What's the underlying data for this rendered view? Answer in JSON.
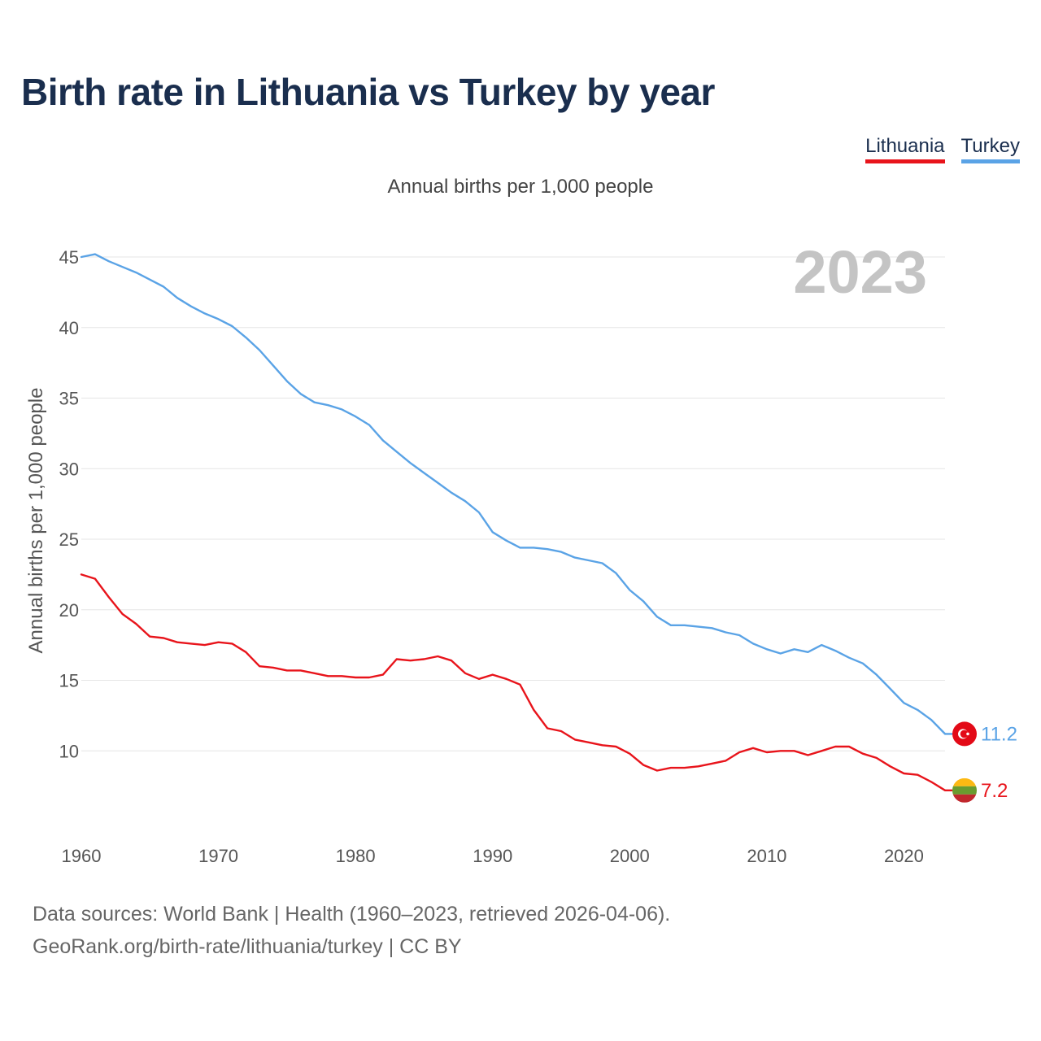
{
  "title": "Birth rate in Lithuania vs Turkey by year",
  "subtitle": "Annual births per 1,000 people",
  "legend": [
    {
      "label": "Lithuania",
      "color": "#e8141b"
    },
    {
      "label": "Turkey",
      "color": "#5aa3e6"
    }
  ],
  "year_watermark": "2023",
  "footer": {
    "line1": "Data sources: World Bank | Health (1960–2023, retrieved 2026-04-06).",
    "line2": "GeoRank.org/birth-rate/lithuania/turkey | CC BY"
  },
  "colors": {
    "lithuania": "#e8141b",
    "turkey": "#5aa3e6",
    "title": "#1a2e4e"
  },
  "chart_data": {
    "type": "line",
    "title": "Birth rate in Lithuania vs Turkey by year",
    "ylabel": "Annual births per 1,000 people",
    "xlabel": "",
    "xlim": [
      1960,
      2023
    ],
    "ylim": [
      5,
      46.5
    ],
    "x_ticks": [
      1960,
      1970,
      1980,
      1990,
      2000,
      2010,
      2020
    ],
    "y_ticks": [
      10,
      15,
      20,
      25,
      30,
      35,
      40,
      45
    ],
    "grid": true,
    "legend_position": "top-right",
    "x": [
      1960,
      1961,
      1962,
      1963,
      1964,
      1965,
      1966,
      1967,
      1968,
      1969,
      1970,
      1971,
      1972,
      1973,
      1974,
      1975,
      1976,
      1977,
      1978,
      1979,
      1980,
      1981,
      1982,
      1983,
      1984,
      1985,
      1986,
      1987,
      1988,
      1989,
      1990,
      1991,
      1992,
      1993,
      1994,
      1995,
      1996,
      1997,
      1998,
      1999,
      2000,
      2001,
      2002,
      2003,
      2004,
      2005,
      2006,
      2007,
      2008,
      2009,
      2010,
      2011,
      2012,
      2013,
      2014,
      2015,
      2016,
      2017,
      2018,
      2019,
      2020,
      2021,
      2022,
      2023
    ],
    "series": [
      {
        "name": "Turkey",
        "color": "#5aa3e6",
        "end_label": "11.2",
        "values": [
          45.0,
          45.2,
          44.7,
          44.3,
          43.9,
          43.4,
          42.9,
          42.1,
          41.5,
          41.0,
          40.6,
          40.1,
          39.3,
          38.4,
          37.3,
          36.2,
          35.3,
          34.7,
          34.5,
          34.2,
          33.7,
          33.1,
          32.0,
          31.2,
          30.4,
          29.7,
          29.0,
          28.3,
          27.7,
          26.9,
          25.5,
          24.9,
          24.4,
          24.4,
          24.3,
          24.1,
          23.7,
          23.5,
          23.3,
          22.6,
          21.4,
          20.6,
          19.5,
          18.9,
          18.9,
          18.8,
          18.7,
          18.4,
          18.2,
          17.6,
          17.2,
          16.9,
          17.2,
          17.0,
          17.5,
          17.1,
          16.6,
          16.2,
          15.4,
          14.4,
          13.4,
          12.9,
          12.2,
          11.2
        ]
      },
      {
        "name": "Lithuania",
        "color": "#e8141b",
        "end_label": "7.2",
        "values": [
          22.5,
          22.2,
          20.9,
          19.7,
          19.0,
          18.1,
          18.0,
          17.7,
          17.6,
          17.5,
          17.7,
          17.6,
          17.0,
          16.0,
          15.9,
          15.7,
          15.7,
          15.5,
          15.3,
          15.3,
          15.2,
          15.2,
          15.4,
          16.5,
          16.4,
          16.5,
          16.7,
          16.4,
          15.5,
          15.1,
          15.4,
          15.1,
          14.7,
          12.9,
          11.6,
          11.4,
          10.8,
          10.6,
          10.4,
          10.3,
          9.8,
          9.0,
          8.6,
          8.8,
          8.8,
          8.9,
          9.1,
          9.3,
          9.9,
          10.2,
          9.9,
          10.0,
          10.0,
          9.7,
          10.0,
          10.3,
          10.3,
          9.8,
          9.5,
          8.9,
          8.4,
          8.3,
          7.8,
          7.2
        ]
      }
    ]
  }
}
